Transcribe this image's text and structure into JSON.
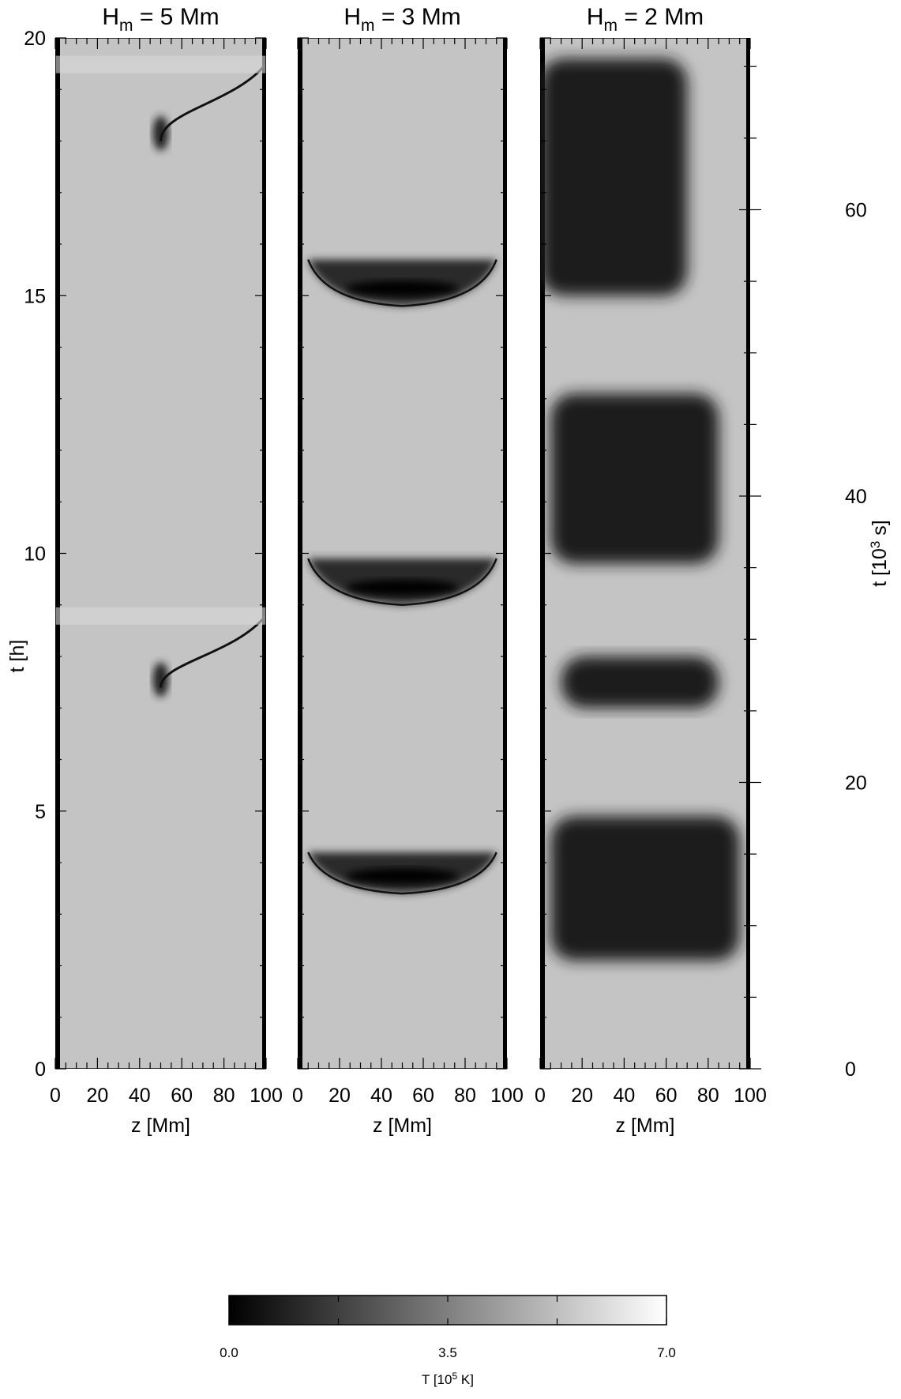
{
  "chart_data": {
    "type": "heatmap",
    "colormap": "grayscale (black = low, white = high)",
    "panels": [
      {
        "title": {
          "base": "H",
          "sub": "m",
          "rest": " = 5 Mm"
        },
        "xlabel": "z [Mm]",
        "xlim": [
          0,
          100
        ],
        "xticks": [
          0,
          20,
          40,
          60,
          80,
          100
        ],
        "description_regions": [
          {
            "t_h": [
              7.4,
              8.8
            ],
            "z_Mm": [
              48,
              100
            ],
            "feature": "cool condensation track drifting to the right footpoint"
          },
          {
            "t_h": [
              18.0,
              19.5
            ],
            "z_Mm": [
              48,
              100
            ],
            "feature": "cool condensation track drifting to the right footpoint"
          }
        ]
      },
      {
        "title": {
          "base": "H",
          "sub": "m",
          "rest": " = 3 Mm"
        },
        "xlabel": "z [Mm]",
        "xlim": [
          0,
          100
        ],
        "xticks": [
          0,
          20,
          40,
          60,
          80,
          100
        ],
        "description_regions": [
          {
            "t_h": [
              3.4,
              4.2
            ],
            "z_Mm": [
              5,
              95
            ],
            "feature": "symmetric condensation cycle"
          },
          {
            "t_h": [
              9.0,
              9.9
            ],
            "z_Mm": [
              5,
              95
            ],
            "feature": "symmetric condensation cycle"
          },
          {
            "t_h": [
              14.8,
              15.7
            ],
            "z_Mm": [
              5,
              95
            ],
            "feature": "symmetric condensation cycle"
          }
        ]
      },
      {
        "title": {
          "base": "H",
          "sub": "m",
          "rest": " = 2 Mm"
        },
        "xlabel": "z [Mm]",
        "xlim": [
          0,
          100
        ],
        "xticks": [
          0,
          20,
          40,
          60,
          80,
          100
        ],
        "description_regions": [
          {
            "t_h": [
              2.1,
              4.9
            ],
            "z_Mm": [
              5,
              95
            ],
            "feature": "cool region"
          },
          {
            "t_h": [
              7.0,
              8.0
            ],
            "z_Mm": [
              10,
              85
            ],
            "feature": "cool region"
          },
          {
            "t_h": [
              9.8,
              13.1
            ],
            "z_Mm": [
              5,
              85
            ],
            "feature": "extended cool region"
          },
          {
            "t_h": [
              15.0,
              19.6
            ],
            "z_Mm": [
              0,
              70
            ],
            "feature": "repeated cool blobs"
          }
        ]
      }
    ],
    "ylabel_left": "t [h]",
    "ylim_left": [
      0,
      20
    ],
    "yticks_left": [
      0,
      5,
      10,
      15,
      20
    ],
    "ylabel_right": {
      "base": "t [10",
      "sup": "3",
      "rest": " s]"
    },
    "ylim_right": [
      0,
      72
    ],
    "yticks_right": [
      0,
      20,
      40,
      60
    ],
    "colorbar": {
      "label": {
        "base": "T [10",
        "sup": "5",
        "rest": " K]"
      },
      "range": [
        0.0,
        7.0
      ],
      "ticks": [
        "0.0",
        "3.5",
        "7.0"
      ]
    }
  }
}
